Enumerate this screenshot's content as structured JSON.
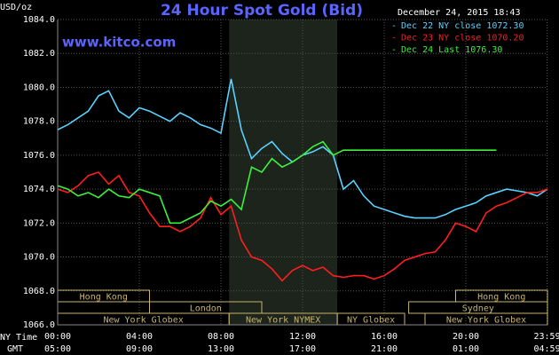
{
  "chart_data": {
    "type": "line",
    "title": "24 Hour Spot Gold (Bid)",
    "unit_label": "USD/oz",
    "timestamp": "December 24, 2015 18:43",
    "site": "www.kitco.com",
    "x_row_labels": [
      "NY Time",
      "GMT"
    ],
    "xlim": [
      0,
      24
    ],
    "xticks": [
      {
        "value": 0,
        "label": "00:00"
      },
      {
        "value": 4,
        "label": "04:00"
      },
      {
        "value": 8,
        "label": "08:00"
      },
      {
        "value": 12,
        "label": "12:00"
      },
      {
        "value": 16,
        "label": "16:00"
      },
      {
        "value": 20,
        "label": "20:00"
      },
      {
        "value": 23.98,
        "label": "23:59"
      }
    ],
    "gmt_labels": [
      "05:00",
      "09:00",
      "13:00",
      "17:00",
      "21:00",
      "01:00",
      "04:59"
    ],
    "ylim": [
      1066,
      1084
    ],
    "yticks": [
      {
        "value": 1066,
        "label": "1066.0"
      },
      {
        "value": 1068,
        "label": "1068.0"
      },
      {
        "value": 1070,
        "label": "1070.0"
      },
      {
        "value": 1072,
        "label": "1072.0"
      },
      {
        "value": 1074,
        "label": "1074.0"
      },
      {
        "value": 1076,
        "label": "1076.0"
      },
      {
        "value": 1078,
        "label": "1078.0"
      },
      {
        "value": 1080,
        "label": "1080.0"
      },
      {
        "value": 1082,
        "label": "1082.0"
      },
      {
        "value": 1084,
        "label": "1084.0"
      }
    ],
    "grid": true,
    "x": [
      0,
      0.5,
      1,
      1.5,
      2,
      2.5,
      3,
      3.5,
      4,
      4.5,
      5,
      5.5,
      6,
      6.5,
      7,
      7.5,
      8,
      8.5,
      9,
      9.5,
      10,
      10.5,
      11,
      11.5,
      12,
      12.5,
      13,
      13.5,
      14,
      14.5,
      15,
      15.5,
      16,
      16.5,
      17,
      17.5,
      18,
      18.5,
      19,
      19.5,
      20,
      20.5,
      21,
      21.5,
      22,
      22.5,
      23,
      23.5,
      24
    ],
    "series": [
      {
        "name": "Dec 22 NY close 1072.30",
        "color": "#5ad2ff",
        "values": [
          1077.5,
          1077.8,
          1078.2,
          1078.6,
          1079.5,
          1079.8,
          1078.6,
          1078.2,
          1078.8,
          1078.6,
          1078.3,
          1078.0,
          1078.5,
          1078.2,
          1077.8,
          1077.6,
          1077.3,
          1080.5,
          1077.5,
          1075.8,
          1076.4,
          1076.8,
          1076.1,
          1075.6,
          1076.0,
          1076.2,
          1076.5,
          1076.0,
          1074.0,
          1074.5,
          1073.6,
          1073.0,
          1072.8,
          1072.6,
          1072.4,
          1072.3,
          1072.3,
          1072.3,
          1072.5,
          1072.8,
          1073.0,
          1073.2,
          1073.6,
          1073.8,
          1074.0,
          1073.9,
          1073.8,
          1073.6,
          1074.0
        ]
      },
      {
        "name": "Dec 23 NY close 1070.20",
        "color": "#ff1e1e",
        "values": [
          1074.0,
          1073.8,
          1074.2,
          1074.8,
          1075.0,
          1074.3,
          1074.8,
          1073.8,
          1073.6,
          1072.6,
          1071.8,
          1071.8,
          1071.5,
          1071.8,
          1072.3,
          1073.5,
          1072.5,
          1073.0,
          1071.0,
          1070.0,
          1069.8,
          1069.3,
          1068.6,
          1069.2,
          1069.5,
          1069.2,
          1069.4,
          1068.9,
          1068.8,
          1068.9,
          1068.9,
          1068.7,
          1068.9,
          1069.3,
          1069.8,
          1070.0,
          1070.2,
          1070.3,
          1071.0,
          1072.0,
          1071.8,
          1071.5,
          1072.6,
          1073.0,
          1073.2,
          1073.5,
          1073.8,
          1073.8,
          1074.0
        ]
      },
      {
        "name": "Dec 24 Last 1076.30",
        "color": "#3cf03c",
        "values": [
          1074.2,
          1074.0,
          1073.6,
          1073.8,
          1073.5,
          1074.0,
          1073.6,
          1073.5,
          1074.0,
          1073.8,
          1073.6,
          1072.0,
          1072.0,
          1072.3,
          1072.6,
          1073.3,
          1073.0,
          1073.4,
          1072.8,
          1075.3,
          1075.0,
          1075.8,
          1075.3,
          1075.6,
          1076.0,
          1076.5,
          1076.8,
          1076.0,
          1076.3,
          1076.3,
          1076.3,
          1076.3,
          1076.3,
          1076.3,
          1076.3,
          1076.3,
          1076.3,
          1076.3,
          1076.3,
          1076.3,
          1076.3,
          1076.3,
          1076.3,
          1076.3,
          null,
          null,
          null,
          null,
          null
        ]
      }
    ],
    "sessions": [
      [
        {
          "label": "Hong Kong",
          "start": 0,
          "end": 4.5
        },
        {
          "label": "Hong Kong",
          "start": 19.5,
          "end": 24
        }
      ],
      [
        {
          "label": "London",
          "start": 4.5,
          "end": 10
        },
        {
          "label": "Sydney",
          "start": 17.2,
          "end": 24
        }
      ],
      [
        {
          "label": "New York Globex",
          "start": 0,
          "end": 8.4
        },
        {
          "label": "New York NYMEX",
          "start": 8.4,
          "end": 13.7,
          "shade": true
        },
        {
          "label": "NY Globex",
          "start": 13.7,
          "end": 17
        },
        {
          "label": "New York Globex",
          "start": 18,
          "end": 24
        }
      ]
    ]
  }
}
